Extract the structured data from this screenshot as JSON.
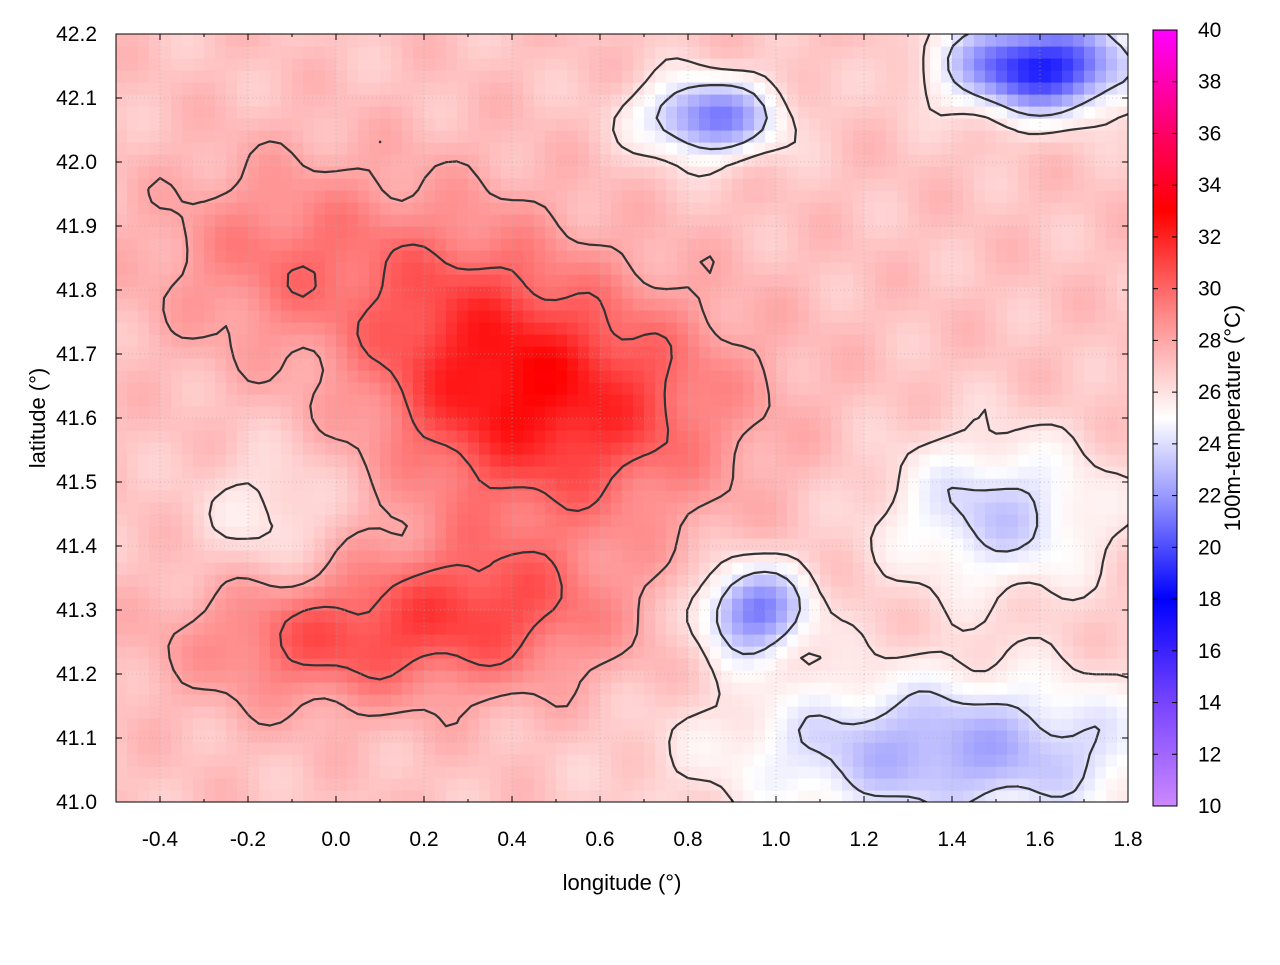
{
  "chart_data": {
    "type": "heatmap",
    "xlabel": "longitude (°)",
    "ylabel": "latitude (°)",
    "colorbar_label": "100m-temperature (°C)",
    "xlim": [
      -0.5,
      1.8
    ],
    "ylim": [
      41.0,
      42.2
    ],
    "clim": [
      10,
      40
    ],
    "x_ticks": [
      "-0.4",
      "-0.2",
      "0.0",
      "0.2",
      "0.4",
      "0.6",
      "0.8",
      "1.0",
      "1.2",
      "1.4",
      "1.6",
      "1.8"
    ],
    "y_ticks": [
      "41.0",
      "41.1",
      "41.2",
      "41.3",
      "41.4",
      "41.5",
      "41.6",
      "41.7",
      "41.8",
      "41.9",
      "42.0",
      "42.1",
      "42.2"
    ],
    "colorbar_ticks": [
      "10",
      "12",
      "14",
      "16",
      "18",
      "20",
      "22",
      "24",
      "26",
      "28",
      "30",
      "32",
      "34",
      "36",
      "38",
      "40"
    ],
    "colormap": [
      {
        "value": 10,
        "color": "#cc88ff"
      },
      {
        "value": 14,
        "color": "#7744ff"
      },
      {
        "value": 18,
        "color": "#0000ff"
      },
      {
        "value": 22,
        "color": "#9999ff"
      },
      {
        "value": 25,
        "color": "#ffffff"
      },
      {
        "value": 29,
        "color": "#ff8888"
      },
      {
        "value": 33,
        "color": "#ff0000"
      },
      {
        "value": 36,
        "color": "#ff0066"
      },
      {
        "value": 40,
        "color": "#ff00ff"
      }
    ],
    "grid": true,
    "contours": true,
    "approx_field": {
      "background": 27,
      "features": [
        {
          "lon": 0.55,
          "lat": 41.62,
          "value": 31.5,
          "spread_lon": 0.35,
          "spread_lat": 0.18
        },
        {
          "lon": 0.3,
          "lat": 41.72,
          "value": 30,
          "spread_lon": 0.25,
          "spread_lat": 0.2
        },
        {
          "lon": 0.35,
          "lat": 41.3,
          "value": 30.5,
          "spread_lon": 0.3,
          "spread_lat": 0.12
        },
        {
          "lon": -0.05,
          "lat": 41.25,
          "value": 30,
          "spread_lon": 0.3,
          "spread_lat": 0.1
        },
        {
          "lon": -0.1,
          "lat": 41.85,
          "value": 29.5,
          "spread_lon": 0.3,
          "spread_lat": 0.15
        },
        {
          "lon": -0.15,
          "lat": 41.45,
          "value": 25.5,
          "spread_lon": 0.15,
          "spread_lat": 0.1
        },
        {
          "lon": 1.6,
          "lat": 42.15,
          "value": 18.5,
          "spread_lon": 0.2,
          "spread_lat": 0.07
        },
        {
          "lon": 0.85,
          "lat": 42.07,
          "value": 21,
          "spread_lon": 0.15,
          "spread_lat": 0.06
        },
        {
          "lon": 0.95,
          "lat": 41.3,
          "value": 21,
          "spread_lon": 0.12,
          "spread_lat": 0.07
        },
        {
          "lon": 1.5,
          "lat": 41.45,
          "value": 23.5,
          "spread_lon": 0.25,
          "spread_lat": 0.12
        },
        {
          "lon": 1.4,
          "lat": 41.08,
          "value": 22.5,
          "spread_lon": 0.5,
          "spread_lat": 0.12
        }
      ]
    }
  }
}
